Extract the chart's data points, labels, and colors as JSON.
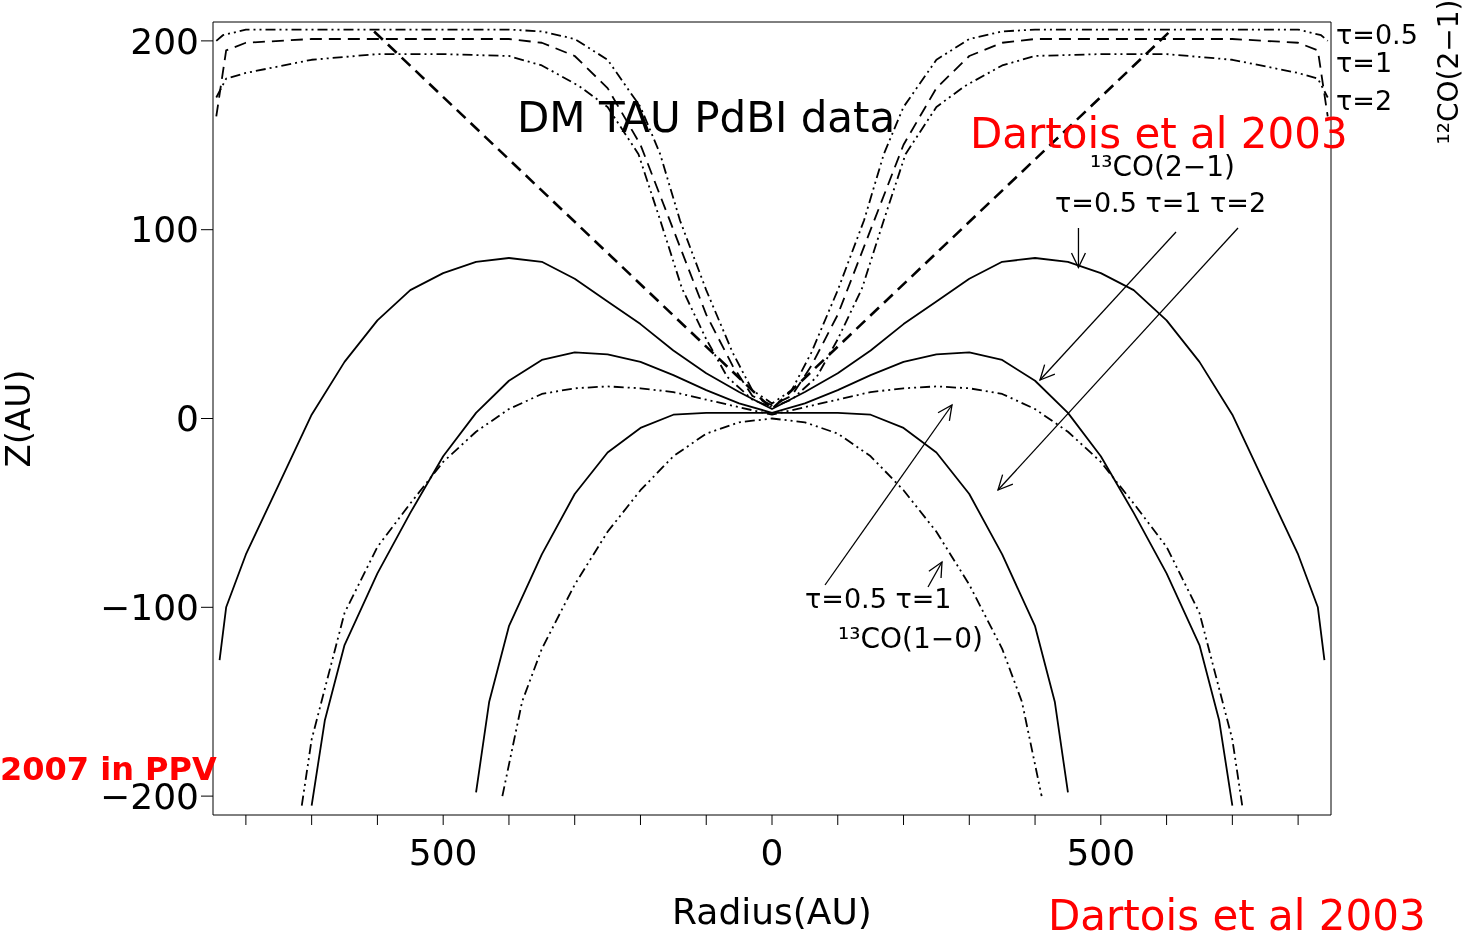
{
  "chart_data": {
    "type": "line",
    "xlabel": "Radius(AU)",
    "ylabel": "Z(AU)",
    "xlim": [
      -850,
      850
    ],
    "ylim": [
      -210,
      210
    ],
    "xticks": [
      {
        "value": -800,
        "label": null
      },
      {
        "value": -700,
        "label": null
      },
      {
        "value": -600,
        "label": null
      },
      {
        "value": -500,
        "label": "500"
      },
      {
        "value": -400,
        "label": null
      },
      {
        "value": -300,
        "label": null
      },
      {
        "value": -200,
        "label": null
      },
      {
        "value": -100,
        "label": null
      },
      0,
      {
        "value": 100,
        "label": null
      },
      {
        "value": 200,
        "label": null
      },
      {
        "value": 300,
        "label": null
      },
      {
        "value": 400,
        "label": null
      },
      500,
      {
        "value": 600,
        "label": null
      },
      {
        "value": 700,
        "label": null
      },
      {
        "value": 800,
        "label": null
      }
    ],
    "yticks": [
      {
        "value": -200,
        "label": "−200"
      },
      {
        "value": -100,
        "label": "−100"
      },
      0,
      100,
      200
    ],
    "marker": "none",
    "annotations": [
      "DM TAU PdBI data",
      "Dartois et al 2003",
      "¹²CO(2−1)",
      "τ=0.5",
      "τ=1",
      "τ=2",
      "¹³CO(2−1)",
      {
        "text": "τ=0.5 τ=1 τ=2",
        "x": 466,
        "y": 80
      },
      "τ=0.5 τ=1",
      "¹³CO(1−0)",
      "2007 in PPV",
      "Dartois et al 2003"
    ],
    "series": [
      {
        "color": "#000000",
        "line_style": "dotted",
        "x": [
          -845,
          -835,
          -800,
          -700,
          -600,
          -500,
          -400,
          -350,
          -300,
          -250,
          -200,
          -170,
          -140,
          -100,
          -60,
          -30,
          0,
          30,
          60,
          100,
          140,
          170,
          200,
          250,
          300,
          350,
          400,
          500,
          600,
          700,
          800,
          835,
          845
        ],
        "values": [
          200,
          203,
          206,
          206,
          206,
          206,
          206,
          205,
          201,
          190,
          165,
          140,
          105,
          68,
          35,
          15,
          8,
          15,
          35,
          68,
          105,
          140,
          165,
          190,
          201,
          205,
          206,
          206,
          206,
          206,
          206,
          203,
          200
        ]
      },
      {
        "color": "#000000",
        "line_style": "dashed",
        "x": [
          -845,
          -830,
          -800,
          -700,
          -600,
          -500,
          -400,
          -350,
          -300,
          -250,
          -200,
          -150,
          -100,
          -60,
          -30,
          0,
          30,
          60,
          100,
          150,
          200,
          250,
          300,
          350,
          400,
          500,
          600,
          700,
          800,
          830,
          845
        ],
        "values": [
          160,
          195,
          199,
          201,
          201,
          201,
          201,
          199,
          192,
          175,
          145,
          100,
          55,
          28,
          12,
          7,
          12,
          28,
          55,
          100,
          145,
          175,
          192,
          199,
          201,
          201,
          201,
          201,
          199,
          195,
          160
        ]
      },
      {
        "color": "#000000",
        "line_style": "dotted",
        "x": [
          -845,
          -830,
          -800,
          -700,
          -600,
          -500,
          -400,
          -350,
          -293,
          -250,
          -203,
          -170,
          -137,
          -100,
          -68,
          -30,
          0,
          30,
          68,
          100,
          137,
          170,
          203,
          250,
          293,
          350,
          400,
          500,
          600,
          700,
          800,
          830,
          845
        ],
        "values": [
          170,
          180,
          183,
          190,
          193,
          193,
          192,
          187,
          176,
          165,
          140,
          105,
          69,
          42,
          22,
          10,
          6,
          10,
          22,
          42,
          69,
          105,
          140,
          165,
          176,
          187,
          192,
          193,
          193,
          190,
          183,
          180,
          170
        ]
      },
      {
        "color": "#000000",
        "line_style": "dashed",
        "x": [
          -605,
          0,
          605
        ],
        "values": [
          205,
          5,
          205
        ]
      },
      {
        "color": "#000000",
        "line_style": "solid",
        "x": [
          -840,
          -830,
          -800,
          -750,
          -700,
          -650,
          -600,
          -550,
          -500,
          -450,
          -400,
          -350,
          -300,
          -250,
          -200,
          -150,
          -100,
          -50,
          0,
          50,
          100,
          150,
          200,
          250,
          300,
          350,
          400,
          450,
          500,
          550,
          600,
          650,
          700,
          750,
          800,
          830,
          840
        ],
        "values": [
          -128,
          -100,
          -72,
          -35,
          2,
          30,
          52,
          68,
          77,
          83,
          85,
          83,
          74,
          62,
          50,
          36,
          24,
          14,
          5,
          14,
          24,
          36,
          50,
          62,
          74,
          83,
          85,
          83,
          77,
          68,
          52,
          30,
          2,
          -35,
          -72,
          -100,
          -128
        ]
      },
      {
        "color": "#000000",
        "line_style": "solid",
        "x": [
          -700,
          -680,
          -650,
          -600,
          -550,
          -500,
          -450,
          -400,
          -350,
          -300,
          -250,
          -200,
          -150,
          -100,
          -50,
          0,
          50,
          100,
          150,
          200,
          250,
          300,
          350,
          400,
          450,
          500,
          550,
          600,
          650,
          680,
          700
        ],
        "values": [
          -205,
          -160,
          -120,
          -82,
          -50,
          -20,
          3,
          20,
          31,
          35,
          34,
          30,
          23,
          15,
          8,
          3,
          8,
          15,
          23,
          30,
          34,
          35,
          31,
          20,
          3,
          -20,
          -50,
          -82,
          -120,
          -160,
          -205
        ]
      },
      {
        "color": "#000000",
        "line_style": "dotted",
        "x": [
          -715,
          -700,
          -650,
          -600,
          -550,
          -500,
          -450,
          -400,
          -350,
          -300,
          -250,
          -200,
          -150,
          -100,
          -50,
          0,
          50,
          100,
          150,
          200,
          250,
          300,
          350,
          400,
          450,
          500,
          550,
          600,
          650,
          700,
          715
        ],
        "values": [
          -205,
          -170,
          -103,
          -68,
          -45,
          -23,
          -7,
          5,
          13,
          16,
          17,
          16,
          14,
          10,
          6,
          2,
          6,
          10,
          14,
          16,
          17,
          16,
          13,
          5,
          -7,
          -23,
          -45,
          -68,
          -103,
          -170,
          -205
        ]
      },
      {
        "color": "#000000",
        "line_style": "solid",
        "x": [
          -450,
          -430,
          -400,
          -350,
          -300,
          -250,
          -200,
          -150,
          -100,
          0,
          100,
          150,
          200,
          250,
          300,
          350,
          400,
          430,
          450
        ],
        "values": [
          -198,
          -150,
          -110,
          -72,
          -40,
          -18,
          -5,
          2,
          3,
          3,
          3,
          2,
          -5,
          -18,
          -40,
          -72,
          -110,
          -150,
          -198
        ]
      },
      {
        "color": "#000000",
        "line_style": "dotted",
        "x": [
          -410,
          -380,
          -350,
          -300,
          -250,
          -200,
          -150,
          -100,
          -50,
          0,
          50,
          100,
          150,
          200,
          250,
          300,
          350,
          380,
          410
        ],
        "values": [
          -200,
          -150,
          -122,
          -88,
          -60,
          -38,
          -20,
          -8,
          -2,
          0,
          -2,
          -8,
          -20,
          -38,
          -60,
          -88,
          -122,
          -150,
          -200
        ]
      }
    ]
  }
}
